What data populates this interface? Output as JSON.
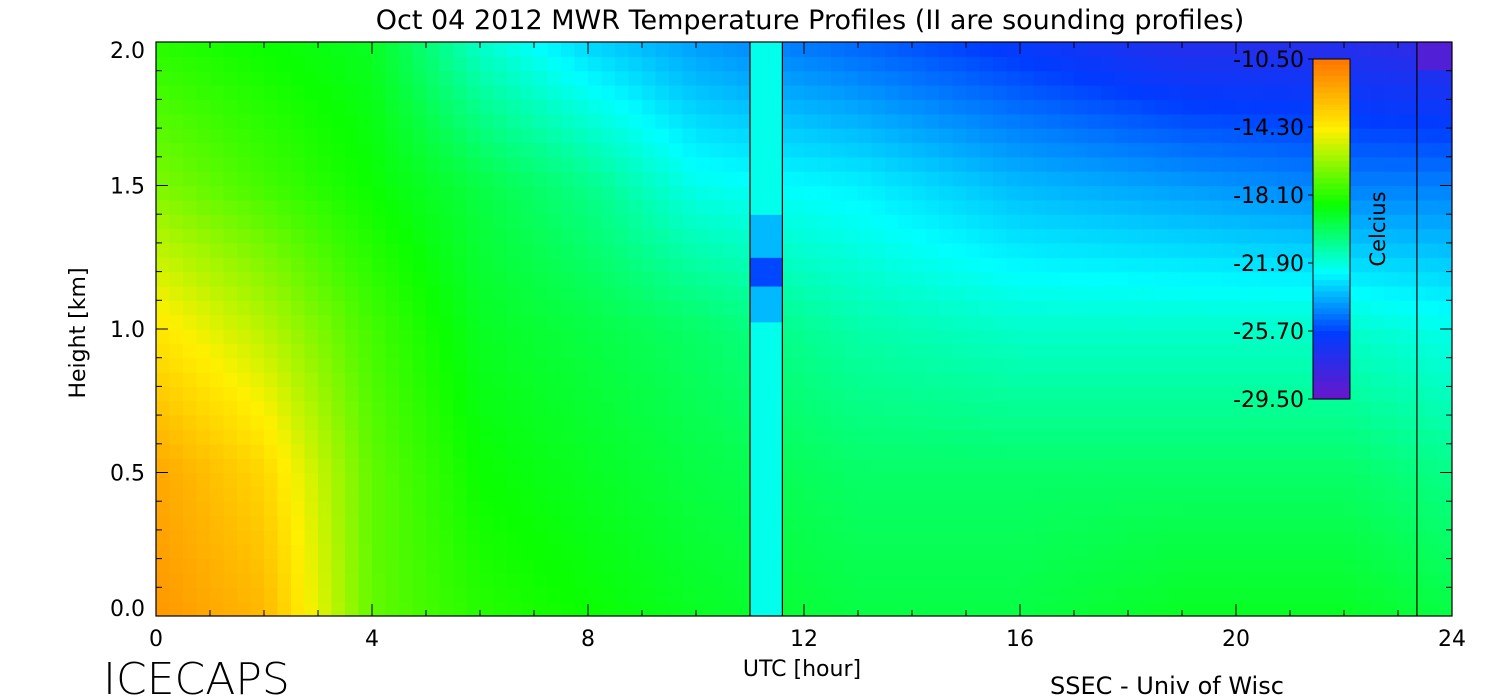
{
  "chart_data": {
    "type": "heatmap",
    "title": "Oct 04 2012 MWR Temperature Profiles (II are sounding profiles)",
    "xlabel": "UTC [hour]",
    "ylabel": "Height [km]",
    "xlim": [
      0,
      24
    ],
    "ylim": [
      0,
      2.0
    ],
    "xticks": [
      "0",
      "4",
      "8",
      "12",
      "16",
      "20",
      "24"
    ],
    "yticks": [
      "0.0",
      "0.5",
      "1.0",
      "1.5",
      "2.0"
    ],
    "grid": false,
    "colorbar": {
      "label": "Celcius",
      "ticks": [
        "-10.50",
        "-14.30",
        "-18.10",
        "-21.90",
        "-25.70",
        "-29.50"
      ],
      "range": [
        -29.5,
        -10.5
      ],
      "placement": "top-right, inside plot"
    },
    "sounding_profiles": [
      {
        "start": 11.0,
        "end": 11.6
      },
      {
        "start": 23.35,
        "end": 23.35
      }
    ],
    "field_description": "Temperature (°C) vs time and height; warmest (about -11 °C) near surface at 0–2 UTC, cooling to about -26 °C aloft after 18 UTC",
    "profiles": [
      {
        "t": 0.0,
        "z": [
          0.0,
          0.5,
          1.0,
          1.5,
          2.0
        ],
        "v": [
          -11.5,
          -12.0,
          -14.0,
          -16.5,
          -18.0
        ]
      },
      {
        "t": 2.0,
        "z": [
          0.0,
          0.5,
          1.0,
          1.5,
          2.0
        ],
        "v": [
          -12.5,
          -13.5,
          -15.5,
          -17.5,
          -18.5
        ]
      },
      {
        "t": 4.0,
        "z": [
          0.0,
          0.5,
          1.0,
          1.5,
          2.0
        ],
        "v": [
          -17.0,
          -17.0,
          -17.5,
          -18.5,
          -19.0
        ]
      },
      {
        "t": 6.0,
        "z": [
          0.0,
          0.5,
          1.0,
          1.5,
          2.0
        ],
        "v": [
          -18.0,
          -18.5,
          -19.0,
          -19.5,
          -21.5
        ]
      },
      {
        "t": 8.0,
        "z": [
          0.0,
          0.5,
          1.0,
          1.5,
          2.0
        ],
        "v": [
          -18.5,
          -19.0,
          -19.5,
          -20.5,
          -23.0
        ]
      },
      {
        "t": 10.0,
        "z": [
          0.0,
          0.5,
          1.0,
          1.5,
          2.0
        ],
        "v": [
          -19.0,
          -19.5,
          -20.0,
          -22.0,
          -24.0
        ]
      },
      {
        "t": 13.0,
        "z": [
          0.0,
          0.5,
          1.0,
          1.5,
          2.0
        ],
        "v": [
          -19.5,
          -20.0,
          -21.0,
          -22.5,
          -25.0
        ]
      },
      {
        "t": 16.0,
        "z": [
          0.0,
          0.5,
          1.0,
          1.5,
          2.0
        ],
        "v": [
          -19.5,
          -20.0,
          -21.5,
          -23.5,
          -26.0
        ]
      },
      {
        "t": 19.0,
        "z": [
          0.0,
          0.5,
          1.0,
          1.5,
          2.0
        ],
        "v": [
          -19.0,
          -20.0,
          -21.5,
          -24.0,
          -27.0
        ]
      },
      {
        "t": 22.0,
        "z": [
          0.0,
          0.5,
          1.0,
          1.5,
          2.0
        ],
        "v": [
          -19.0,
          -20.0,
          -21.5,
          -24.5,
          -27.0
        ]
      },
      {
        "t": 24.0,
        "z": [
          0.0,
          0.5,
          1.0,
          1.5,
          2.0
        ],
        "v": [
          -19.5,
          -20.5,
          -22.0,
          -24.5,
          -27.5
        ]
      }
    ]
  },
  "branding": {
    "left": "ICECAPS",
    "right": "SSEC - Univ of Wisc"
  }
}
